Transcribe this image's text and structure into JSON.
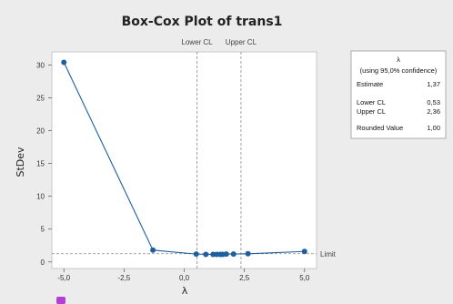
{
  "chart_data": {
    "type": "line",
    "title": "Box-Cox Plot of trans1",
    "xlabel": "λ",
    "ylabel": "StDev",
    "xlim": [
      -5.5,
      5.5
    ],
    "ylim": [
      -1,
      32
    ],
    "x_ticks": [
      -5.0,
      -2.5,
      0.0,
      2.5,
      5.0
    ],
    "x_tick_labels": [
      "-5,0",
      "-2,5",
      "0,0",
      "2,5",
      "5,0"
    ],
    "y_ticks": [
      0,
      5,
      10,
      15,
      20,
      25,
      30
    ],
    "y_tick_labels": [
      "0",
      "5",
      "10",
      "15",
      "20",
      "25",
      "30"
    ],
    "series": [
      {
        "x": [
          -5.0,
          -1.3,
          0.5,
          0.9,
          1.2,
          1.35,
          1.5,
          1.6,
          1.75,
          2.05,
          2.65,
          5.0
        ],
        "y": [
          30.4,
          1.8,
          1.2,
          1.15,
          1.15,
          1.15,
          1.15,
          1.15,
          1.2,
          1.2,
          1.25,
          1.6
        ],
        "color": "#1f5f9e"
      }
    ],
    "reference_lines": {
      "lower_cl": {
        "label": "Lower CL",
        "x": 0.53
      },
      "upper_cl": {
        "label": "Upper CL",
        "x": 2.36
      },
      "limit": {
        "label": "Limit",
        "y": 1.25
      }
    },
    "grid": false,
    "legend": {
      "header": "λ",
      "subheader": "(using 95,0% confidence)",
      "rows": [
        {
          "label": "Estimate",
          "value": "1,37"
        },
        {
          "label": "Lower CL",
          "value": "0,53"
        },
        {
          "label": "Upper CL",
          "value": "2,36"
        },
        {
          "label": "Rounded Value",
          "value": "1,00"
        }
      ],
      "placement": "right"
    },
    "colors": {
      "background": "#ececec",
      "plot_area": "#ffffff",
      "series": "#1f5f9e",
      "reference": "#8a8a8a"
    }
  }
}
